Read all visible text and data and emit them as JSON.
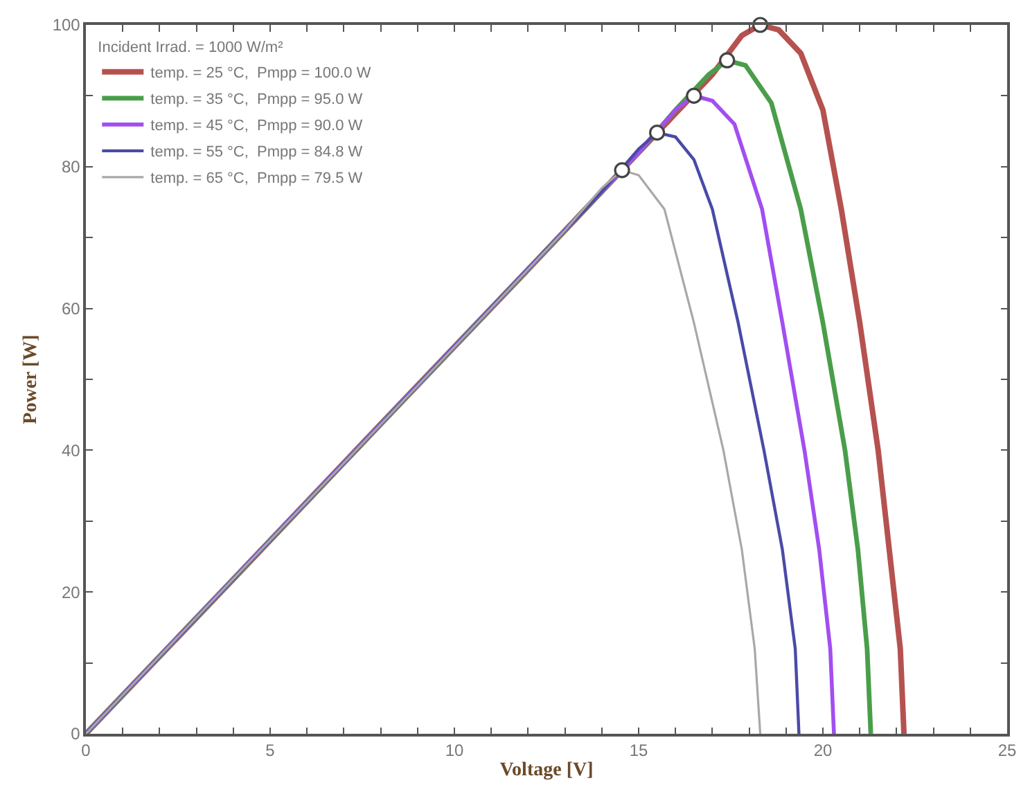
{
  "chart_data": {
    "type": "line",
    "xlabel": "Voltage [V]",
    "ylabel": "Power [W]",
    "legend_title": "Incident Irrad. = 1000 W/m²",
    "legend": "top left",
    "grid": false,
    "marker": "none",
    "line_style": "solid",
    "xlim": [
      0,
      25
    ],
    "ylim": [
      0,
      100
    ],
    "xticks": [
      0,
      {
        "value": 1,
        "label": null
      },
      {
        "value": 2,
        "label": null
      },
      {
        "value": 3,
        "label": null
      },
      {
        "value": 4,
        "label": null
      },
      5,
      {
        "value": 6,
        "label": null
      },
      {
        "value": 7,
        "label": null
      },
      {
        "value": 8,
        "label": null
      },
      {
        "value": 9,
        "label": null
      },
      10,
      {
        "value": 11,
        "label": null
      },
      {
        "value": 12,
        "label": null
      },
      {
        "value": 13,
        "label": null
      },
      {
        "value": 14,
        "label": null
      },
      15,
      {
        "value": 16,
        "label": null
      },
      {
        "value": 17,
        "label": null
      },
      {
        "value": 18,
        "label": null
      },
      {
        "value": 19,
        "label": null
      },
      20,
      {
        "value": 21,
        "label": null
      },
      {
        "value": 22,
        "label": null
      },
      {
        "value": 23,
        "label": null
      },
      {
        "value": 24,
        "label": null
      },
      25
    ],
    "yticks": [
      0,
      {
        "value": 10,
        "label": null
      },
      20,
      {
        "value": 30,
        "label": null
      },
      40,
      {
        "value": 50,
        "label": null
      },
      60,
      {
        "value": 70,
        "label": null
      },
      80,
      {
        "value": 90,
        "label": null
      },
      100
    ],
    "series": [
      {
        "name": "temp. = 25 °C,  Pmpp = 100.0 W",
        "color": "#b5524f",
        "x": [
          0,
          4,
          8,
          12,
          15,
          16,
          17,
          17.8,
          18.3,
          18.8,
          19.4,
          20,
          20.5,
          21,
          21.5,
          21.8,
          22.1,
          22.2
        ],
        "values": [
          0,
          21.8,
          43.7,
          65.5,
          82,
          87.5,
          93,
          98.5,
          100,
          99.3,
          96,
          88,
          74,
          58,
          40,
          26,
          12,
          0
        ]
      },
      {
        "name": "temp. = 35 °C,  Pmpp = 95.0 W",
        "color": "#4a9e4a",
        "x": [
          0,
          5,
          10,
          13,
          15,
          16,
          16.9,
          17.4,
          17.9,
          18.6,
          19.4,
          20,
          20.6,
          20.95,
          21.2,
          21.3
        ],
        "values": [
          0,
          27.3,
          54.6,
          71,
          82,
          88,
          93,
          95,
          94.3,
          89,
          74,
          58,
          40,
          26,
          12,
          0
        ]
      },
      {
        "name": "temp. = 45 °C,  Pmpp = 90.0 W",
        "color": "#a24ef0",
        "x": [
          0,
          6,
          11,
          14,
          15,
          16,
          16.5,
          17,
          17.6,
          18.35,
          18.9,
          19.5,
          19.9,
          20.2,
          20.3
        ],
        "values": [
          0,
          32.8,
          60.1,
          76.5,
          82,
          88,
          90,
          89.3,
          86,
          74,
          58,
          40,
          26,
          12,
          0
        ]
      },
      {
        "name": "temp. = 55 °C,  Pmpp = 84.8 W",
        "color": "#4a4aa8",
        "x": [
          0,
          7,
          12.5,
          13.5,
          14,
          15,
          15.5,
          16,
          16.5,
          17,
          17.7,
          18.4,
          18.9,
          19.25,
          19.35
        ],
        "values": [
          0,
          38.2,
          68.3,
          73.7,
          76.5,
          82.5,
          84.8,
          84.2,
          81,
          74,
          58,
          40,
          26,
          12,
          0
        ]
      },
      {
        "name": "temp. = 65 °C,  Pmpp = 79.5 W",
        "color": "#a8a8a8",
        "x": [
          0,
          3,
          9,
          13,
          14,
          14.55,
          15,
          15.7,
          16.5,
          17.3,
          17.8,
          18.15,
          18.3
        ],
        "values": [
          0,
          16.4,
          49.1,
          71,
          77,
          79.5,
          78.8,
          74,
          58,
          40,
          26,
          12,
          0
        ]
      },
      {
        "type": "scatter",
        "marker": "circle",
        "color": "#ffffff",
        "x": [
          18.3,
          17.4,
          16.5,
          15.5,
          14.55
        ],
        "values": [
          100,
          95,
          90,
          84.8,
          79.5
        ]
      }
    ]
  }
}
